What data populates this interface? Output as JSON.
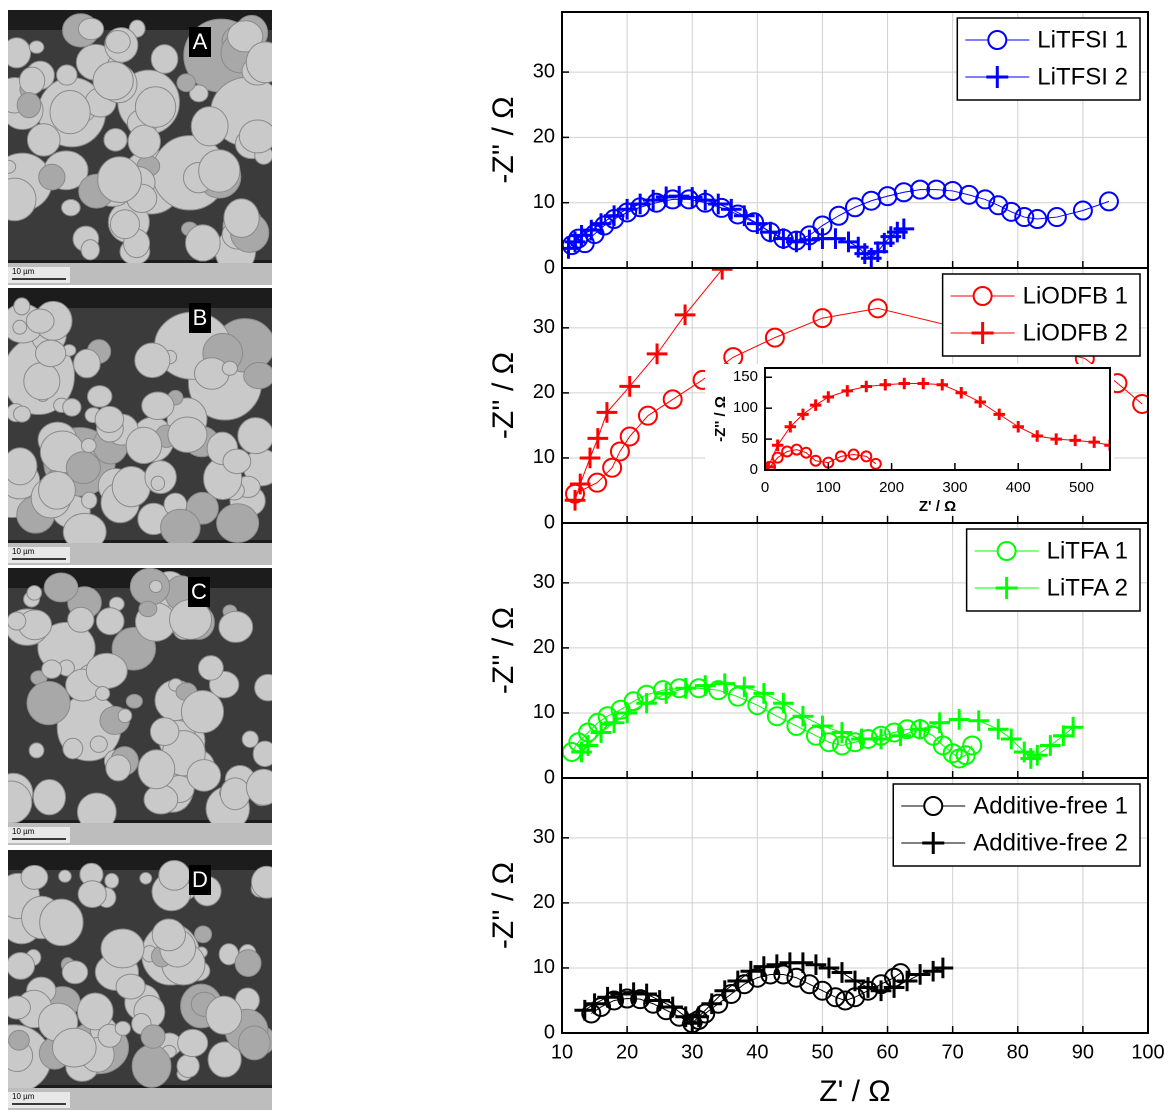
{
  "images": [
    {
      "label": "A",
      "scale_bar": "10 µm"
    },
    {
      "label": "B",
      "scale_bar": "10 µm"
    },
    {
      "label": "C",
      "scale_bar": "10 µm"
    },
    {
      "label": "D",
      "scale_bar": "10 µm"
    }
  ],
  "chart_data": [
    {
      "type": "line",
      "ylabel": "-Z'' / Ω",
      "xlim": [
        10,
        100
      ],
      "ylim": [
        0,
        39.2
      ],
      "xticks": [
        10,
        20,
        30,
        40,
        50,
        60,
        70,
        80,
        90,
        100
      ],
      "yticks": [
        0,
        10,
        20,
        30
      ],
      "grid": true,
      "legend": "upper right",
      "series": [
        {
          "name": "LiTFSI 1",
          "color": "#0000ff",
          "marker": "circle",
          "x": [
            11.5,
            12.5,
            13.5,
            15,
            16.5,
            18,
            20,
            22,
            24.5,
            27,
            29.5,
            32,
            34.5,
            37,
            39.5,
            42,
            44,
            46,
            48,
            50,
            52.5,
            55,
            57.5,
            60,
            62.5,
            65,
            67.5,
            70,
            72.5,
            75,
            77,
            79,
            81,
            83,
            86,
            90,
            94
          ],
          "values": [
            3.5,
            4.5,
            3.8,
            5.2,
            6.5,
            7.5,
            8.5,
            9.3,
            10,
            10.5,
            10.5,
            10,
            9.2,
            8.2,
            7,
            5.5,
            4.5,
            4.2,
            5,
            6.5,
            8,
            9.3,
            10.3,
            11,
            11.6,
            12,
            12,
            11.8,
            11.2,
            10.5,
            9.6,
            8.6,
            7.8,
            7.5,
            7.8,
            8.8,
            10.2
          ]
        },
        {
          "name": "LiTFSI 2",
          "color": "#0000ff",
          "marker": "plus",
          "x": [
            11,
            12,
            13,
            14.5,
            16,
            18,
            20,
            22,
            24,
            26,
            28,
            30,
            32,
            34,
            36,
            38,
            40,
            42,
            44,
            46,
            48,
            50,
            52,
            54,
            55.5,
            56.5,
            57.5,
            58.5,
            59.5,
            60.5,
            61.5,
            62.5
          ],
          "values": [
            3,
            4,
            5,
            5.8,
            6.8,
            8,
            9,
            9.8,
            10.4,
            10.9,
            11,
            10.8,
            10.4,
            9.8,
            9,
            8,
            6.8,
            5.5,
            4.5,
            4,
            4.3,
            4.5,
            4.5,
            4,
            3.2,
            2.2,
            1.5,
            2.5,
            3.8,
            4.8,
            5.5,
            6
          ]
        }
      ]
    },
    {
      "type": "line",
      "ylabel": "-Z'' / Ω",
      "xlim": [
        10,
        100
      ],
      "ylim": [
        0,
        39.2
      ],
      "xticks": [
        10,
        20,
        30,
        40,
        50,
        60,
        70,
        80,
        90,
        100
      ],
      "yticks": [
        0,
        10,
        20,
        30
      ],
      "grid": true,
      "legend": "upper right",
      "series": [
        {
          "name": "LiODFB 1",
          "color": "#ff0000",
          "marker": "circle",
          "x": [
            12,
            15.4,
            17.7,
            18.9,
            20.4,
            23.2,
            27,
            31.6,
            36.3,
            42.7,
            50,
            58.5,
            90.3,
            95.3,
            99.1
          ],
          "values": [
            4.5,
            6.2,
            8.5,
            11,
            13.3,
            16.5,
            19,
            22,
            25.5,
            28.5,
            31.5,
            33,
            25.3,
            21.5,
            18.3
          ]
        },
        {
          "name": "LiODFB 2",
          "color": "#ff0000",
          "marker": "plus",
          "x": [
            12,
            12.8,
            14.3,
            15.5,
            16.9,
            20.4,
            24.6,
            28.9,
            34.6
          ],
          "values": [
            3.5,
            6,
            10,
            13,
            17,
            21,
            26,
            32,
            39
          ]
        }
      ]
    },
    {
      "type": "line",
      "ylabel": "-Z'' / Ω",
      "xlim": [
        10,
        100
      ],
      "ylim": [
        0,
        39.2
      ],
      "xticks": [
        10,
        20,
        30,
        40,
        50,
        60,
        70,
        80,
        90,
        100
      ],
      "yticks": [
        0,
        10,
        20,
        30
      ],
      "grid": true,
      "legend": "upper right",
      "series": [
        {
          "name": "LiTFA 1",
          "color": "#00ff00",
          "marker": "circle",
          "x": [
            11.5,
            12.5,
            14,
            15.5,
            17,
            19,
            21,
            23,
            25.5,
            28,
            31,
            34,
            37,
            40,
            43,
            46,
            49,
            51,
            53,
            55,
            57,
            59,
            61,
            63,
            65,
            67,
            68.5,
            70,
            71,
            72,
            73
          ],
          "values": [
            4,
            5.5,
            7,
            8.5,
            9.5,
            10.5,
            11.8,
            12.8,
            13.5,
            13.8,
            13.8,
            13.5,
            12.5,
            11.2,
            9.5,
            8,
            6.5,
            5.5,
            5,
            5.5,
            6,
            6.5,
            7,
            7.5,
            7.5,
            6.5,
            5,
            3.8,
            3,
            3.5,
            5
          ]
        },
        {
          "name": "LiTFA 2",
          "color": "#00ff00",
          "marker": "plus",
          "x": [
            13,
            14,
            16,
            18,
            20,
            23,
            26,
            29,
            32,
            35,
            38,
            41,
            44,
            47,
            50,
            53,
            56,
            59,
            62,
            65,
            68,
            71,
            74,
            77,
            79,
            81,
            82,
            83,
            85,
            87,
            88.5
          ],
          "values": [
            4,
            5,
            7,
            8.5,
            10,
            11.5,
            13,
            13.8,
            14.2,
            14.5,
            14,
            13,
            11.5,
            9.5,
            8,
            7,
            6,
            6,
            6.5,
            7.5,
            8.5,
            9,
            8.8,
            7.5,
            6,
            4,
            3,
            3.5,
            5,
            6.5,
            7.8
          ]
        }
      ]
    },
    {
      "type": "line",
      "ylabel": "-Z'' / Ω",
      "xlabel": "Z' / Ω",
      "xlim": [
        10,
        100
      ],
      "ylim": [
        0,
        39.2
      ],
      "xticks": [
        10,
        20,
        30,
        40,
        50,
        60,
        70,
        80,
        90,
        100
      ],
      "yticks": [
        0,
        10,
        20,
        30
      ],
      "grid": true,
      "legend": "upper right",
      "series": [
        {
          "name": "Additive-free 1",
          "color": "#000000",
          "marker": "circle",
          "x": [
            14.5,
            16,
            18,
            20,
            22,
            24,
            26,
            28,
            30,
            31,
            32,
            34,
            36,
            38,
            40,
            42,
            44,
            46,
            48,
            50,
            52,
            53.5,
            55,
            57,
            59,
            61,
            62
          ],
          "values": [
            3,
            4,
            5,
            5.3,
            5.2,
            4.5,
            3.5,
            2.5,
            1.5,
            2,
            3,
            4.5,
            6,
            7.5,
            8.5,
            9,
            9,
            8.5,
            7.5,
            6.5,
            5.5,
            5,
            5.5,
            6.5,
            7.5,
            8.5,
            9.2
          ]
        },
        {
          "name": "Additive-free 2",
          "color": "#000000",
          "marker": "plus",
          "x": [
            13.5,
            15,
            17,
            19,
            21,
            23,
            25,
            27,
            29,
            30,
            31,
            33,
            35,
            37,
            39,
            41,
            43,
            45,
            47,
            49,
            51,
            53,
            55,
            57,
            59,
            61,
            63,
            65,
            67,
            68.5
          ],
          "values": [
            3.5,
            4.5,
            5.5,
            6,
            6.2,
            6,
            5,
            4,
            2.5,
            1.5,
            2.5,
            4.5,
            6.5,
            8,
            9.5,
            10.2,
            10.5,
            10.8,
            10.8,
            10.5,
            10,
            9.3,
            8,
            7,
            6.5,
            7,
            8,
            9,
            9.5,
            10
          ]
        }
      ]
    },
    {
      "type": "line",
      "ylabel": "-Z'' / Ω",
      "xlabel": "Z' / Ω",
      "xlim": [
        0,
        545
      ],
      "ylim": [
        0,
        165
      ],
      "xticks": [
        0,
        100,
        200,
        300,
        400,
        500
      ],
      "yticks": [
        0,
        50,
        100,
        150
      ],
      "grid": false,
      "series": [
        {
          "color": "#ff0000",
          "marker": "circle",
          "x": [
            8,
            20,
            35,
            50,
            65,
            80,
            100,
            120,
            140,
            160,
            175
          ],
          "values": [
            5,
            20,
            30,
            33,
            28,
            15,
            12,
            22,
            25,
            22,
            10
          ]
        },
        {
          "color": "#ff0000",
          "marker": "plus",
          "x": [
            5,
            20,
            40,
            60,
            80,
            100,
            130,
            160,
            190,
            220,
            250,
            280,
            310,
            340,
            370,
            400,
            430,
            460,
            490,
            520,
            545
          ],
          "values": [
            5,
            40,
            70,
            90,
            105,
            118,
            128,
            135,
            138,
            140,
            140,
            138,
            125,
            110,
            90,
            70,
            55,
            50,
            48,
            45,
            40
          ]
        }
      ]
    }
  ]
}
